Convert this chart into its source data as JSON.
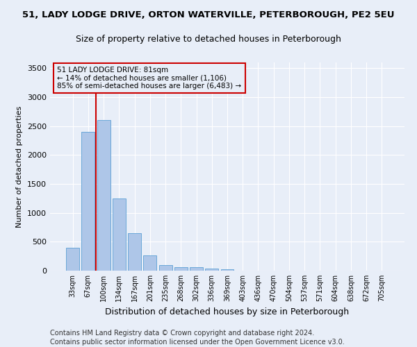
{
  "title1": "51, LADY LODGE DRIVE, ORTON WATERVILLE, PETERBOROUGH, PE2 5EU",
  "title2": "Size of property relative to detached houses in Peterborough",
  "xlabel": "Distribution of detached houses by size in Peterborough",
  "ylabel": "Number of detached properties",
  "bar_labels": [
    "33sqm",
    "67sqm",
    "100sqm",
    "134sqm",
    "167sqm",
    "201sqm",
    "235sqm",
    "268sqm",
    "302sqm",
    "336sqm",
    "369sqm",
    "403sqm",
    "436sqm",
    "470sqm",
    "504sqm",
    "537sqm",
    "571sqm",
    "604sqm",
    "638sqm",
    "672sqm",
    "705sqm"
  ],
  "bar_values": [
    400,
    2400,
    2600,
    1250,
    650,
    260,
    100,
    60,
    60,
    40,
    25,
    0,
    0,
    0,
    0,
    0,
    0,
    0,
    0,
    0,
    0
  ],
  "bar_color": "#aec6e8",
  "bar_edge_color": "#5a9fd4",
  "background_color": "#e8eef8",
  "grid_color": "#ffffff",
  "annotation_text": "51 LADY LODGE DRIVE: 81sqm\n← 14% of detached houses are smaller (1,106)\n85% of semi-detached houses are larger (6,483) →",
  "annotation_box_color": "#cc0000",
  "vline_x": 1.5,
  "vline_color": "#cc0000",
  "ylim": [
    0,
    3600
  ],
  "yticks": [
    0,
    500,
    1000,
    1500,
    2000,
    2500,
    3000,
    3500
  ],
  "footer1": "Contains HM Land Registry data © Crown copyright and database right 2024.",
  "footer2": "Contains public sector information licensed under the Open Government Licence v3.0.",
  "title1_fontsize": 9.5,
  "title2_fontsize": 9,
  "annotation_fontsize": 7.5,
  "footer_fontsize": 7,
  "tick_fontsize": 7,
  "ylabel_fontsize": 8,
  "xlabel_fontsize": 9
}
